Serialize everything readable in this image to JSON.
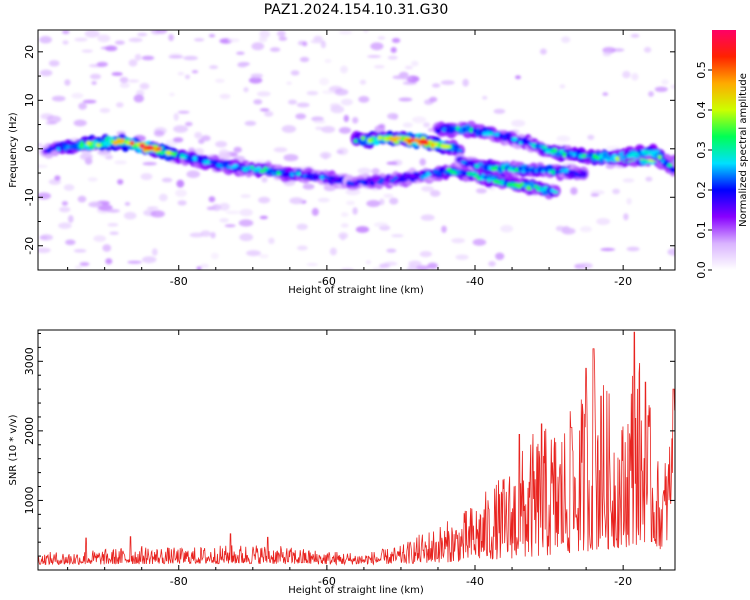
{
  "figure": {
    "title": "PAZ1.2024.154.10.31.G30"
  },
  "chart_data": [
    {
      "type": "heatmap",
      "xlabel": "Height of straight line (km)",
      "ylabel": "Frequency (Hz)",
      "xlim": [
        -99,
        -13
      ],
      "ylim": [
        -25,
        24.5
      ],
      "xticks": [
        -80,
        -60,
        -40,
        -20
      ],
      "yticks": [
        -20,
        -10,
        0,
        10,
        20
      ],
      "grid": false,
      "colorbar": {
        "label": "Normalized spectral amplitude",
        "range": [
          0,
          0.6
        ],
        "ticks": [
          0.0,
          0.1,
          0.2,
          0.3,
          0.4,
          0.5
        ],
        "colormap": [
          "#ffffff",
          "#d9b3ff",
          "#8800ff",
          "#0000ff",
          "#00e0ff",
          "#00ff55",
          "#ccff00",
          "#ffaa00",
          "#ff2200",
          "#ff0066"
        ]
      },
      "ridges": [
        {
          "x": [
            -98,
            -93,
            -88,
            -84,
            -80,
            -76,
            -72,
            -68,
            -64,
            -60,
            -57
          ],
          "y": [
            -0.2,
            0.8,
            1.5,
            0.2,
            -1.5,
            -2.8,
            -3.8,
            -4.5,
            -5.3,
            -6.0,
            -6.8
          ],
          "amplitude": [
            0.18,
            0.35,
            0.45,
            0.55,
            0.3,
            0.25,
            0.25,
            0.3,
            0.25,
            0.22,
            0.2
          ]
        },
        {
          "x": [
            -56,
            -51,
            -47,
            -44,
            -42
          ],
          "y": [
            1.8,
            2.0,
            1.5,
            0.5,
            -0.3
          ],
          "amplitude": [
            0.3,
            0.45,
            0.55,
            0.4,
            0.25
          ]
        },
        {
          "x": [
            -45,
            -41,
            -37,
            -33,
            -29,
            -25,
            -20,
            -16,
            -13
          ],
          "y": [
            4.0,
            4.0,
            2.8,
            1.2,
            -0.8,
            -1.5,
            -2.0,
            -2.2,
            -3.0
          ],
          "amplitude": [
            0.22,
            0.3,
            0.25,
            0.25,
            0.3,
            0.3,
            0.35,
            0.4,
            0.3
          ]
        },
        {
          "x": [
            -57,
            -52,
            -47,
            -43,
            -40,
            -36,
            -32,
            -29
          ],
          "y": [
            -7.0,
            -6.5,
            -5.5,
            -4.5,
            -5.5,
            -7.0,
            -8.0,
            -9.0
          ],
          "amplitude": [
            0.2,
            0.2,
            0.22,
            0.3,
            0.3,
            0.3,
            0.32,
            0.25
          ]
        },
        {
          "x": [
            -42,
            -38,
            -34,
            -30,
            -27,
            -25
          ],
          "y": [
            -2.5,
            -3.8,
            -4.2,
            -4.5,
            -4.8,
            -5.5
          ],
          "amplitude": [
            0.2,
            0.3,
            0.3,
            0.28,
            0.25,
            0.22
          ]
        },
        {
          "x": [
            -20,
            -18,
            -16,
            -14,
            -13
          ],
          "y": [
            -1.5,
            -1.0,
            -0.5,
            -3.0,
            -4.5
          ],
          "amplitude": [
            0.3,
            0.3,
            0.35,
            0.3,
            0.25
          ]
        }
      ]
    },
    {
      "type": "line",
      "xlabel": "Height of straight line (km)",
      "ylabel": "SNR (10 * v/v)",
      "xlim": [
        -99,
        -13
      ],
      "ylim": [
        0,
        3450
      ],
      "xticks": [
        -80,
        -60,
        -40,
        -20
      ],
      "yticks": [
        1000,
        2000,
        3000
      ],
      "grid": false,
      "series": [
        {
          "color": "#e8231f",
          "envelope_x": [
            -99,
            -90,
            -85,
            -80,
            -70,
            -60,
            -55,
            -50,
            -47,
            -44,
            -42,
            -40,
            -38,
            -36,
            -34,
            -32,
            -30,
            -28,
            -26,
            -24,
            -22,
            -20,
            -18.5,
            -17,
            -15,
            -14,
            -13
          ],
          "envelope_low": [
            80,
            80,
            85,
            90,
            90,
            80,
            80,
            90,
            100,
            110,
            120,
            140,
            150,
            160,
            170,
            180,
            200,
            220,
            250,
            280,
            300,
            320,
            350,
            400,
            300,
            400,
            1500
          ],
          "envelope_high": [
            250,
            300,
            350,
            320,
            380,
            280,
            250,
            350,
            550,
            700,
            800,
            1000,
            1200,
            1400,
            1700,
            2000,
            2100,
            2200,
            2400,
            3150,
            2600,
            2200,
            3400,
            2800,
            1400,
            1800,
            2500
          ],
          "spikes": [
            {
              "x": -92.5,
              "y": 460
            },
            {
              "x": -86.5,
              "y": 480
            },
            {
              "x": -73,
              "y": 520
            },
            {
              "x": -68,
              "y": 470
            },
            {
              "x": -34,
              "y": 1950
            },
            {
              "x": -31,
              "y": 2100
            },
            {
              "x": -27,
              "y": 2050
            },
            {
              "x": -25,
              "y": 2900
            },
            {
              "x": -24,
              "y": 3180
            },
            {
              "x": -23,
              "y": 2500
            },
            {
              "x": -18.5,
              "y": 3420
            },
            {
              "x": -17,
              "y": 2700
            },
            {
              "x": -13.2,
              "y": 2600
            }
          ]
        }
      ]
    }
  ]
}
